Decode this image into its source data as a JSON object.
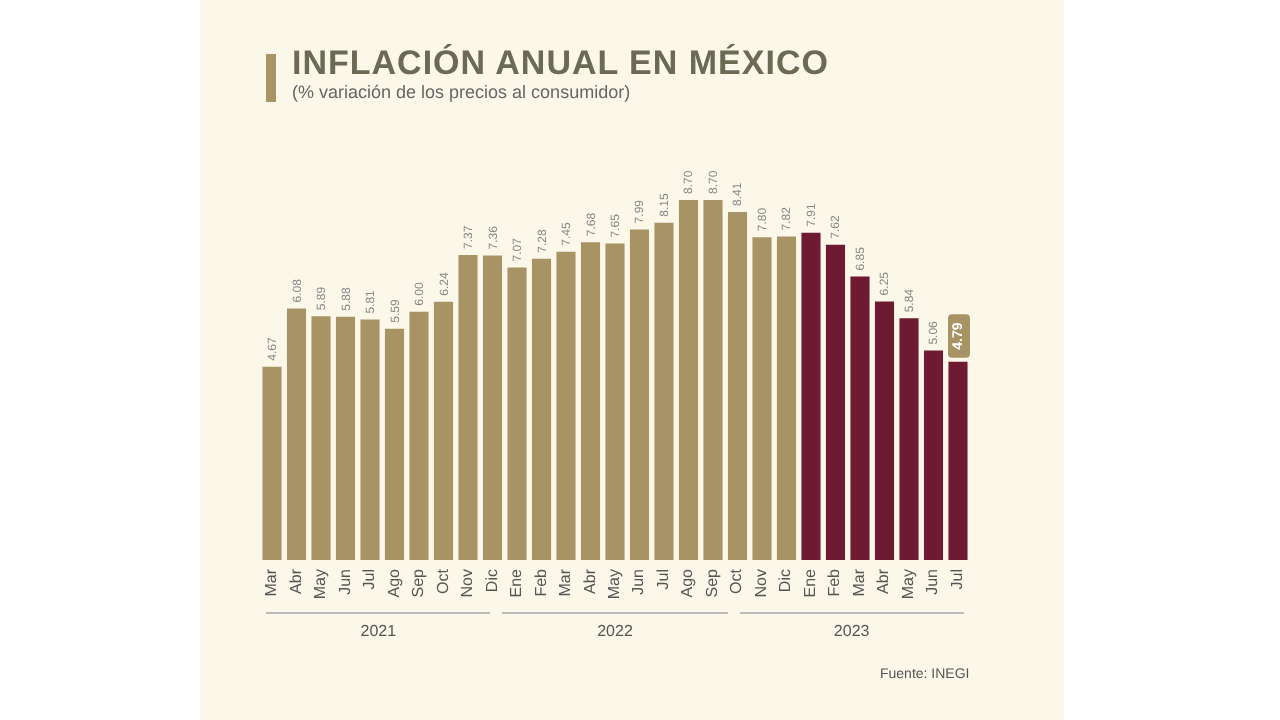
{
  "chart_data": {
    "type": "bar",
    "title": "INFLACIÓN ANUAL EN MÉXICO",
    "subtitle": "(% variación de los precios al consumidor)",
    "categories": [
      "Mar",
      "Abr",
      "May",
      "Jun",
      "Jul",
      "Ago",
      "Sep",
      "Oct",
      "Nov",
      "Dic",
      "Ene",
      "Feb",
      "Mar",
      "Abr",
      "May",
      "Jun",
      "Jul",
      "Ago",
      "Sep",
      "Oct",
      "Nov",
      "Dic",
      "Ene",
      "Feb",
      "Mar",
      "Abr",
      "May",
      "Jun",
      "Jul"
    ],
    "values": [
      4.67,
      6.08,
      5.89,
      5.88,
      5.81,
      5.59,
      6.0,
      6.24,
      7.37,
      7.36,
      7.07,
      7.28,
      7.45,
      7.68,
      7.65,
      7.99,
      8.15,
      8.7,
      8.7,
      8.41,
      7.8,
      7.82,
      7.91,
      7.62,
      6.85,
      6.25,
      5.84,
      5.06,
      4.79
    ],
    "colors": [
      "#a89364",
      "#a89364",
      "#a89364",
      "#a89364",
      "#a89364",
      "#a89364",
      "#a89364",
      "#a89364",
      "#a89364",
      "#a89364",
      "#a89364",
      "#a89364",
      "#a89364",
      "#a89364",
      "#a89364",
      "#a89364",
      "#a89364",
      "#a89364",
      "#a89364",
      "#a89364",
      "#a89364",
      "#a89364",
      "#6e1a33",
      "#6e1a33",
      "#6e1a33",
      "#6e1a33",
      "#6e1a33",
      "#6e1a33",
      "#6e1a33"
    ],
    "value_labels": [
      "4.67",
      "6.08",
      "5.89",
      "5.88",
      "5.81",
      "5.59",
      "6.00",
      "6.24",
      "7.37",
      "7.36",
      "7.07",
      "7.28",
      "7.45",
      "7.68",
      "7.65",
      "7.99",
      "8.15",
      "8.70",
      "8.70",
      "8.41",
      "7.80",
      "7.82",
      "7.91",
      "7.62",
      "6.85",
      "6.25",
      "5.84",
      "5.06",
      "4.79"
    ],
    "annotations": [
      "2021",
      "2022",
      "2023",
      "Fuente: INEGI"
    ]
  }
}
